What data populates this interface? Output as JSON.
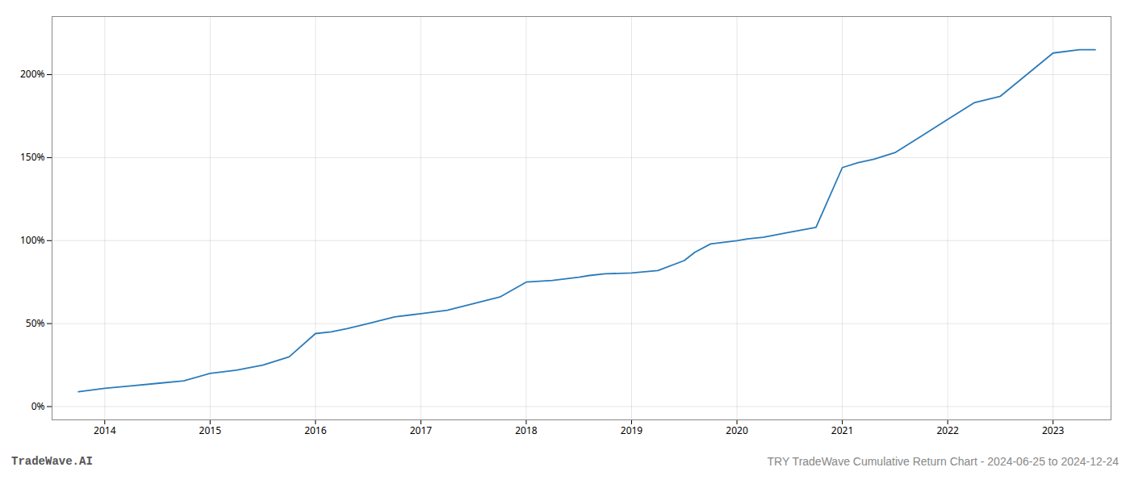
{
  "chart_data": {
    "type": "line",
    "title": "TRY TradeWave Cumulative Return Chart - 2024-06-25 to 2024-12-24",
    "annotations": [
      "TradeWave.AI"
    ],
    "x": [
      2013.75,
      2014.0,
      2014.25,
      2014.5,
      2014.75,
      2015.0,
      2015.25,
      2015.5,
      2015.75,
      2016.0,
      2016.15,
      2016.3,
      2016.5,
      2016.75,
      2017.0,
      2017.25,
      2017.5,
      2017.75,
      2018.0,
      2018.25,
      2018.5,
      2018.6,
      2018.75,
      2019.0,
      2019.25,
      2019.5,
      2019.6,
      2019.75,
      2020.0,
      2020.1,
      2020.25,
      2020.5,
      2020.75,
      2021.0,
      2021.15,
      2021.3,
      2021.5,
      2021.75,
      2022.0,
      2022.25,
      2022.5,
      2022.75,
      2023.0,
      2023.25,
      2023.4
    ],
    "values": [
      9,
      11,
      12.5,
      14,
      15.5,
      20,
      22,
      25,
      30,
      44,
      45,
      47,
      50,
      54,
      56,
      58,
      62,
      66,
      75,
      76,
      78,
      79,
      80,
      80.5,
      82,
      88,
      93,
      98,
      100,
      101,
      102,
      105,
      108,
      144,
      147,
      149,
      153,
      163,
      173,
      183,
      187,
      200,
      213,
      215,
      215
    ],
    "color": "#2b7bba",
    "xlim": [
      2013.5,
      2023.55
    ],
    "xticks": [
      2014,
      2015,
      2016,
      2017,
      2018,
      2019,
      2020,
      2021,
      2022,
      2023
    ],
    "ylim": [
      -8,
      235
    ],
    "yticks": [
      {
        "value": 0,
        "label": "0%"
      },
      {
        "value": 50,
        "label": "50%"
      },
      {
        "value": 100,
        "label": "100%"
      },
      {
        "value": 150,
        "label": "150%"
      },
      {
        "value": 200,
        "label": "200%"
      }
    ],
    "grid": true
  }
}
